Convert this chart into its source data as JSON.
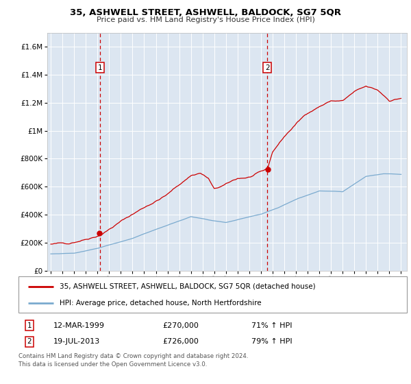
{
  "title": "35, ASHWELL STREET, ASHWELL, BALDOCK, SG7 5QR",
  "subtitle": "Price paid vs. HM Land Registry's House Price Index (HPI)",
  "legend_line1": "35, ASHWELL STREET, ASHWELL, BALDOCK, SG7 5QR (detached house)",
  "legend_line2": "HPI: Average price, detached house, North Hertfordshire",
  "footnote": "Contains HM Land Registry data © Crown copyright and database right 2024.\nThis data is licensed under the Open Government Licence v3.0.",
  "sale1_date": "12-MAR-1999",
  "sale1_price": "£270,000",
  "sale1_hpi": "71% ↑ HPI",
  "sale2_date": "19-JUL-2013",
  "sale2_price": "£726,000",
  "sale2_hpi": "79% ↑ HPI",
  "sale1_year": 1999.2,
  "sale1_value": 270000,
  "sale2_year": 2013.55,
  "sale2_value": 726000,
  "red_color": "#cc0000",
  "blue_color": "#7aaacf",
  "bg_color": "#dce6f1",
  "grid_color": "#ffffff",
  "ylim_max": 1700000,
  "xlim_start": 1994.7,
  "xlim_end": 2025.5,
  "ytick_step": 200000,
  "fig_width": 6.0,
  "fig_height": 5.6
}
